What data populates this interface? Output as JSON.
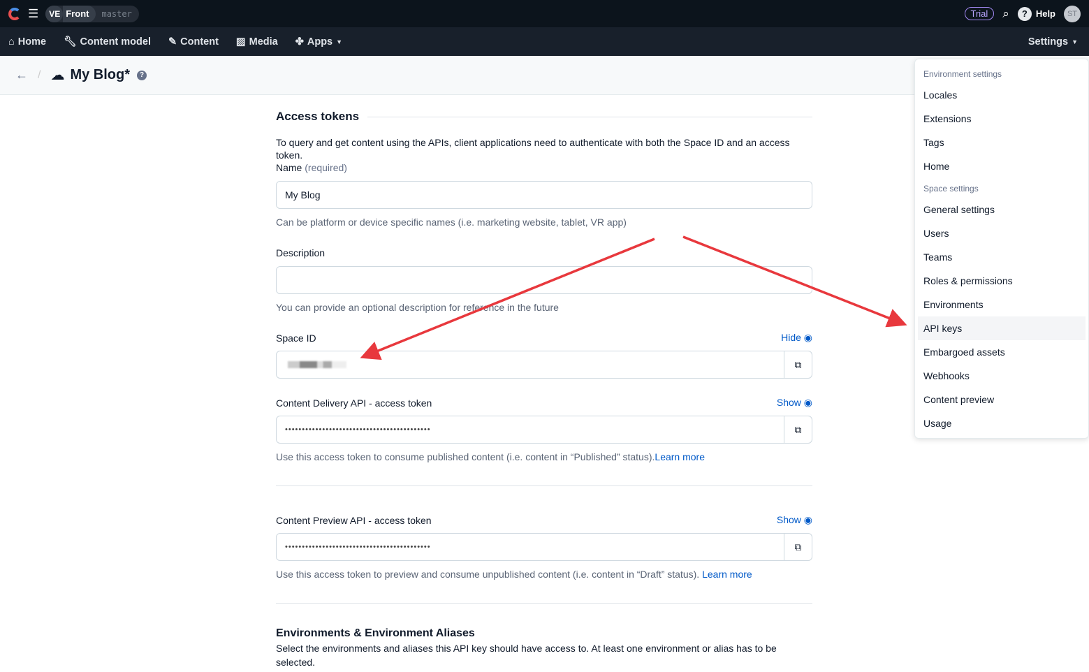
{
  "topbar": {
    "org_initials": "VE",
    "space": "Front",
    "environment": "master",
    "trial": "Trial",
    "help": "Help",
    "avatar": "ST"
  },
  "nav": {
    "items": [
      "Home",
      "Content model",
      "Content",
      "Media",
      "Apps"
    ],
    "settings": "Settings"
  },
  "header": {
    "title": "My Blog*"
  },
  "form": {
    "section_title": "Access tokens",
    "intro": "To query and get content using the APIs, client applications need to authenticate with both the Space ID and an access token.",
    "name_label": "Name",
    "name_required": "(required)",
    "name_value": "My Blog",
    "name_help": "Can be platform or device specific names (i.e. marketing website, tablet, VR app)",
    "description_label": "Description",
    "description_value": "",
    "description_help": "You can provide an optional description for reference in the future",
    "space_id_label": "Space ID",
    "space_id_toggle": "Hide",
    "cda_label": "Content Delivery API - access token",
    "cda_toggle": "Show",
    "cda_value": "•••••••••••••••••••••••••••••••••••••••••••",
    "cda_help": "Use this access token to consume published content (i.e. content in “Published” status).",
    "cda_link": "Learn more",
    "cpa_label": "Content Preview API - access token",
    "cpa_toggle": "Show",
    "cpa_value": "•••••••••••••••••••••••••••••••••••••••••••",
    "cpa_help": "Use this access token to preview and consume unpublished content (i.e. content in “Draft” status). ",
    "cpa_link": "Learn more",
    "env_title": "Environments & Environment Aliases",
    "env_text": "Select the environments and aliases this API key should have access to. At least one environment or alias has to be selected."
  },
  "settings_menu": {
    "env_header": "Environment settings",
    "env_items": [
      "Locales",
      "Extensions",
      "Tags",
      "Home"
    ],
    "space_header": "Space settings",
    "space_items": [
      "General settings",
      "Users",
      "Teams",
      "Roles & permissions",
      "Environments",
      "API keys",
      "Embargoed assets",
      "Webhooks",
      "Content preview",
      "Usage"
    ],
    "active": "API keys"
  },
  "colors": {
    "accent": "#0059c8",
    "arrow": "#e8383d",
    "topbar": "#0c141c"
  }
}
